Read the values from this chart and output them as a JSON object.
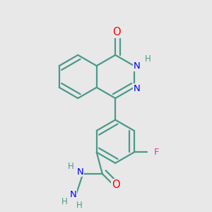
{
  "background_color": "#e8e8e8",
  "bond_color": "#4a9a8a",
  "bond_width": 1.6,
  "atom_colors": {
    "O": "#ff0000",
    "N": "#0000ff",
    "H": "#4a9a8a",
    "F": "#cc44aa",
    "C": "#4a9a8a"
  },
  "font_size": 9.5,
  "fig_size": [
    3.0,
    3.0
  ],
  "dpi": 100
}
